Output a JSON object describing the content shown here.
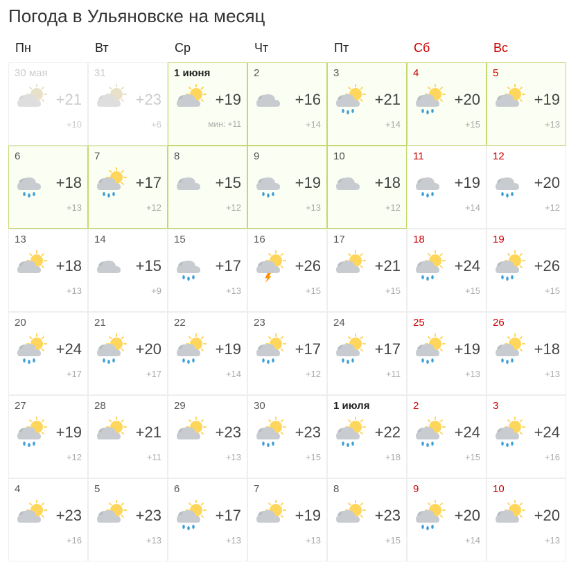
{
  "title": "Погода в Ульяновске на месяц",
  "colors": {
    "text": "#333333",
    "weekend": "#cc0000",
    "past": "#cccccc",
    "border": "#eeeeee",
    "highlight_bg": "#fbfef2",
    "highlight_border": "#c3d96e",
    "low_text": "#aaaaaa"
  },
  "headers": [
    {
      "label": "Пн",
      "weekend": false
    },
    {
      "label": "Вт",
      "weekend": false
    },
    {
      "label": "Ср",
      "weekend": false
    },
    {
      "label": "Чт",
      "weekend": false
    },
    {
      "label": "Пт",
      "weekend": false
    },
    {
      "label": "Сб",
      "weekend": true
    },
    {
      "label": "Вс",
      "weekend": true
    }
  ],
  "weeks": [
    [
      {
        "date": "30 мая",
        "high": "+21",
        "low": "+10",
        "icon": "partly",
        "past": true,
        "bold": false,
        "weekend": false,
        "highlight": false
      },
      {
        "date": "31",
        "high": "+23",
        "low": "+6",
        "icon": "partly",
        "past": true,
        "bold": false,
        "weekend": false,
        "highlight": false
      },
      {
        "date": "1 июня",
        "high": "+19",
        "low": "мин: +11",
        "icon": "partly",
        "past": false,
        "bold": true,
        "weekend": false,
        "highlight": true,
        "min_label": true
      },
      {
        "date": "2",
        "high": "+16",
        "low": "+14",
        "icon": "cloudy",
        "past": false,
        "bold": false,
        "weekend": false,
        "highlight": true
      },
      {
        "date": "3",
        "high": "+21",
        "low": "+14",
        "icon": "rain-partly",
        "past": false,
        "bold": false,
        "weekend": false,
        "highlight": true
      },
      {
        "date": "4",
        "high": "+20",
        "low": "+15",
        "icon": "rain-partly",
        "past": false,
        "bold": false,
        "weekend": true,
        "highlight": true
      },
      {
        "date": "5",
        "high": "+19",
        "low": "+13",
        "icon": "partly",
        "past": false,
        "bold": false,
        "weekend": true,
        "highlight": true
      }
    ],
    [
      {
        "date": "6",
        "high": "+18",
        "low": "+13",
        "icon": "rain",
        "past": false,
        "bold": false,
        "weekend": false,
        "highlight": true
      },
      {
        "date": "7",
        "high": "+17",
        "low": "+12",
        "icon": "rain-partly",
        "past": false,
        "bold": false,
        "weekend": false,
        "highlight": true
      },
      {
        "date": "8",
        "high": "+15",
        "low": "+12",
        "icon": "cloudy",
        "past": false,
        "bold": false,
        "weekend": false,
        "highlight": true
      },
      {
        "date": "9",
        "high": "+19",
        "low": "+13",
        "icon": "rain",
        "past": false,
        "bold": false,
        "weekend": false,
        "highlight": true
      },
      {
        "date": "10",
        "high": "+18",
        "low": "+12",
        "icon": "cloudy",
        "past": false,
        "bold": false,
        "weekend": false,
        "highlight": true
      },
      {
        "date": "11",
        "high": "+19",
        "low": "+14",
        "icon": "rain",
        "past": false,
        "bold": false,
        "weekend": true,
        "highlight": false
      },
      {
        "date": "12",
        "high": "+20",
        "low": "+12",
        "icon": "rain",
        "past": false,
        "bold": false,
        "weekend": true,
        "highlight": false
      }
    ],
    [
      {
        "date": "13",
        "high": "+18",
        "low": "+13",
        "icon": "partly",
        "past": false,
        "bold": false,
        "weekend": false,
        "highlight": false
      },
      {
        "date": "14",
        "high": "+15",
        "low": "+9",
        "icon": "cloudy",
        "past": false,
        "bold": false,
        "weekend": false,
        "highlight": false
      },
      {
        "date": "15",
        "high": "+17",
        "low": "+13",
        "icon": "rain",
        "past": false,
        "bold": false,
        "weekend": false,
        "highlight": false
      },
      {
        "date": "16",
        "high": "+26",
        "low": "+15",
        "icon": "storm",
        "past": false,
        "bold": false,
        "weekend": false,
        "highlight": false
      },
      {
        "date": "17",
        "high": "+21",
        "low": "+15",
        "icon": "partly",
        "past": false,
        "bold": false,
        "weekend": false,
        "highlight": false
      },
      {
        "date": "18",
        "high": "+24",
        "low": "+15",
        "icon": "rain-partly",
        "past": false,
        "bold": false,
        "weekend": true,
        "highlight": false
      },
      {
        "date": "19",
        "high": "+26",
        "low": "+15",
        "icon": "rain-partly",
        "past": false,
        "bold": false,
        "weekend": true,
        "highlight": false
      }
    ],
    [
      {
        "date": "20",
        "high": "+24",
        "low": "+17",
        "icon": "rain-partly",
        "past": false,
        "bold": false,
        "weekend": false,
        "highlight": false
      },
      {
        "date": "21",
        "high": "+20",
        "low": "+17",
        "icon": "rain-partly",
        "past": false,
        "bold": false,
        "weekend": false,
        "highlight": false
      },
      {
        "date": "22",
        "high": "+19",
        "low": "+14",
        "icon": "rain-partly",
        "past": false,
        "bold": false,
        "weekend": false,
        "highlight": false
      },
      {
        "date": "23",
        "high": "+17",
        "low": "+12",
        "icon": "rain-partly",
        "past": false,
        "bold": false,
        "weekend": false,
        "highlight": false
      },
      {
        "date": "24",
        "high": "+17",
        "low": "+11",
        "icon": "rain-partly",
        "past": false,
        "bold": false,
        "weekend": false,
        "highlight": false
      },
      {
        "date": "25",
        "high": "+19",
        "low": "+13",
        "icon": "rain-partly",
        "past": false,
        "bold": false,
        "weekend": true,
        "highlight": false
      },
      {
        "date": "26",
        "high": "+18",
        "low": "+13",
        "icon": "rain-partly",
        "past": false,
        "bold": false,
        "weekend": true,
        "highlight": false
      }
    ],
    [
      {
        "date": "27",
        "high": "+19",
        "low": "+12",
        "icon": "rain-partly",
        "past": false,
        "bold": false,
        "weekend": false,
        "highlight": false
      },
      {
        "date": "28",
        "high": "+21",
        "low": "+11",
        "icon": "partly",
        "past": false,
        "bold": false,
        "weekend": false,
        "highlight": false
      },
      {
        "date": "29",
        "high": "+23",
        "low": "+13",
        "icon": "partly",
        "past": false,
        "bold": false,
        "weekend": false,
        "highlight": false
      },
      {
        "date": "30",
        "high": "+23",
        "low": "+15",
        "icon": "rain-partly",
        "past": false,
        "bold": false,
        "weekend": false,
        "highlight": false
      },
      {
        "date": "1 июля",
        "high": "+22",
        "low": "+18",
        "icon": "rain-partly",
        "past": false,
        "bold": true,
        "weekend": false,
        "highlight": false
      },
      {
        "date": "2",
        "high": "+24",
        "low": "+15",
        "icon": "rain-partly",
        "past": false,
        "bold": false,
        "weekend": true,
        "highlight": false
      },
      {
        "date": "3",
        "high": "+24",
        "low": "+16",
        "icon": "rain-partly",
        "past": false,
        "bold": false,
        "weekend": true,
        "highlight": false
      }
    ],
    [
      {
        "date": "4",
        "high": "+23",
        "low": "+16",
        "icon": "partly",
        "past": false,
        "bold": false,
        "weekend": false,
        "highlight": false
      },
      {
        "date": "5",
        "high": "+23",
        "low": "+13",
        "icon": "partly",
        "past": false,
        "bold": false,
        "weekend": false,
        "highlight": false
      },
      {
        "date": "6",
        "high": "+17",
        "low": "+13",
        "icon": "rain-partly",
        "past": false,
        "bold": false,
        "weekend": false,
        "highlight": false
      },
      {
        "date": "7",
        "high": "+19",
        "low": "+13",
        "icon": "partly",
        "past": false,
        "bold": false,
        "weekend": false,
        "highlight": false
      },
      {
        "date": "8",
        "high": "+23",
        "low": "+15",
        "icon": "partly",
        "past": false,
        "bold": false,
        "weekend": false,
        "highlight": false
      },
      {
        "date": "9",
        "high": "+20",
        "low": "+14",
        "icon": "rain-partly",
        "past": false,
        "bold": false,
        "weekend": true,
        "highlight": false
      },
      {
        "date": "10",
        "high": "+20",
        "low": "+13",
        "icon": "partly",
        "past": false,
        "bold": false,
        "weekend": true,
        "highlight": false
      }
    ]
  ]
}
